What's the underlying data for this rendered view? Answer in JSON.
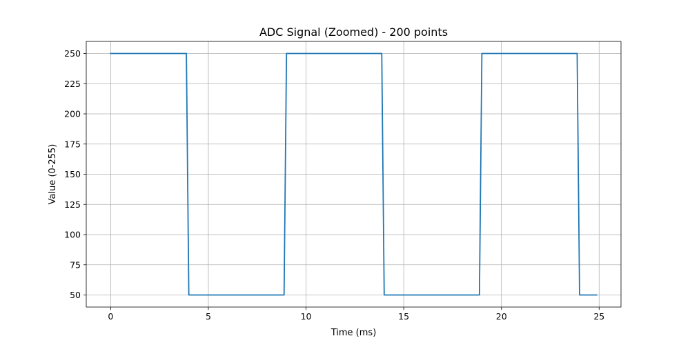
{
  "chart_data": {
    "type": "line",
    "title": "ADC Signal (Zoomed) - 200 points",
    "xlabel": "Time (ms)",
    "ylabel": "Value (0-255)",
    "xlim": [
      -1.25,
      26.12
    ],
    "ylim": [
      40,
      260
    ],
    "xticks": [
      0,
      5,
      10,
      15,
      20,
      25
    ],
    "yticks": [
      50,
      75,
      100,
      125,
      150,
      175,
      200,
      225,
      250
    ],
    "grid": true,
    "line_color": "#1f77b4",
    "series": [
      {
        "x": [
          0,
          3.875,
          4.0,
          8.875,
          9.0,
          13.875,
          14.0,
          18.875,
          19.0,
          23.875,
          24.0,
          24.875
        ],
        "values": [
          250,
          250,
          50,
          50,
          250,
          250,
          50,
          50,
          250,
          250,
          50,
          50
        ]
      }
    ]
  }
}
